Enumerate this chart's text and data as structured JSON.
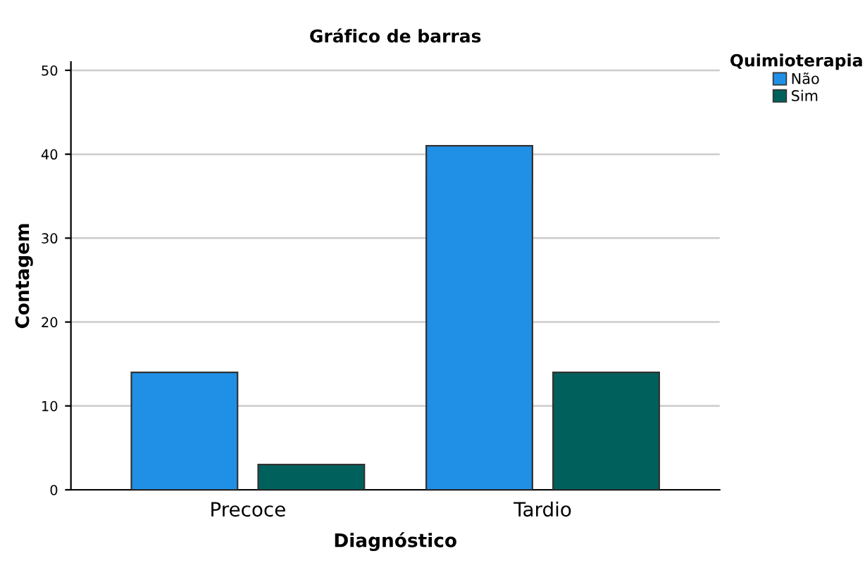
{
  "chart_data": {
    "type": "bar",
    "title": "Gráfico de barras",
    "xlabel": "Diagnóstico",
    "ylabel": "Contagem",
    "legend_title": "Quimioterapia",
    "categories": [
      "Precoce",
      "Tardio"
    ],
    "series": [
      {
        "name": "Não",
        "color": "#1f90e6",
        "values": [
          14,
          41
        ]
      },
      {
        "name": "Sim",
        "color": "#00605c",
        "values": [
          3,
          14
        ]
      }
    ],
    "ylim": [
      0,
      51
    ],
    "yticks": [
      0,
      10,
      20,
      30,
      40,
      50
    ],
    "grid": "y",
    "legend": "top right"
  }
}
